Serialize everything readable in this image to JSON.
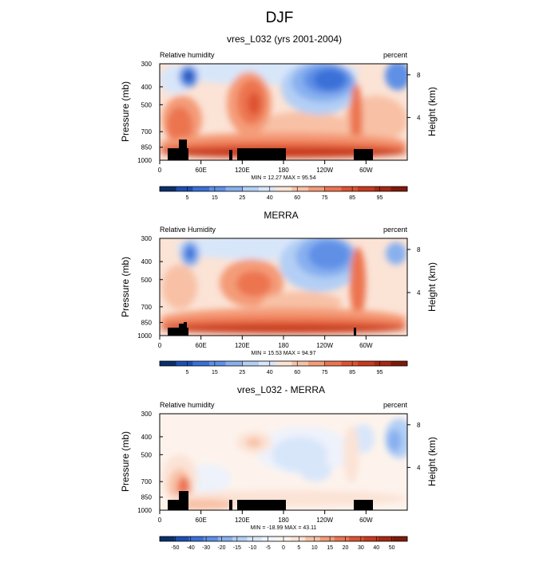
{
  "title": "DJF",
  "chart_data": [
    {
      "type": "heatmap",
      "title": "vres_L032 (yrs 2001-2004)",
      "left_label": "Relative humidity",
      "right_label": "percent",
      "ylabel": "Pressure (mb)",
      "ylabel_right": "Height (km)",
      "y_ticks": [
        "300",
        "400",
        "500",
        "700",
        "850",
        "1000"
      ],
      "y_ticks_right": [
        "8",
        "4"
      ],
      "x_ticks": [
        "0",
        "60E",
        "120E",
        "180",
        "120W",
        "60W"
      ],
      "stats": "MIN = 12.27  MAX = 95.54",
      "colorbar": {
        "colors": [
          "#08306b",
          "#1c4fb4",
          "#3a70d8",
          "#5e90e6",
          "#88b0ef",
          "#b3cff5",
          "#d8e6fa",
          "#fbe3d6",
          "#f8c1a6",
          "#f49b78",
          "#ec7450",
          "#de5331",
          "#c83a1e",
          "#a82812",
          "#80190a"
        ],
        "labels": [
          "5",
          "15",
          "25",
          "40",
          "60",
          "75",
          "85",
          "95"
        ]
      }
    },
    {
      "type": "heatmap",
      "title": "MERRA",
      "left_label": "Relative Humidity",
      "right_label": "percent",
      "ylabel": "Pressure (mb)",
      "ylabel_right": "Height (km)",
      "y_ticks": [
        "300",
        "400",
        "500",
        "700",
        "850",
        "1000"
      ],
      "y_ticks_right": [
        "8",
        "4"
      ],
      "x_ticks": [
        "0",
        "60E",
        "120E",
        "180",
        "120W",
        "60W"
      ],
      "stats": "MIN = 15.53  MAX = 94.97",
      "colorbar": {
        "colors": [
          "#08306b",
          "#1c4fb4",
          "#3a70d8",
          "#5e90e6",
          "#88b0ef",
          "#b3cff5",
          "#d8e6fa",
          "#fbe3d6",
          "#f8c1a6",
          "#f49b78",
          "#ec7450",
          "#de5331",
          "#c83a1e",
          "#a82812",
          "#80190a"
        ],
        "labels": [
          "5",
          "15",
          "25",
          "40",
          "60",
          "75",
          "85",
          "95"
        ]
      }
    },
    {
      "type": "heatmap",
      "title": "vres_L032 - MERRA",
      "left_label": "Relative humidity",
      "right_label": "percent",
      "ylabel": "Pressure (mb)",
      "ylabel_right": "Height (km)",
      "y_ticks": [
        "300",
        "400",
        "500",
        "700",
        "850",
        "1000"
      ],
      "y_ticks_right": [
        "8",
        "4"
      ],
      "x_ticks": [
        "0",
        "60E",
        "120E",
        "180",
        "120W",
        "60W"
      ],
      "stats": "MIN = -18.99  MAX = 43.11",
      "colorbar": {
        "colors": [
          "#08306b",
          "#1c4fb4",
          "#3a70d8",
          "#5e90e6",
          "#88b0ef",
          "#b3cff5",
          "#d8e6fa",
          "#eef2fb",
          "#fdf3ec",
          "#fbe3d6",
          "#f8c1a6",
          "#f49b78",
          "#ec7450",
          "#de5331",
          "#c83a1e",
          "#a82812",
          "#80190a"
        ],
        "labels": [
          "-50",
          "-40",
          "-30",
          "-20",
          "-15",
          "-10",
          "-5",
          "0",
          "5",
          "10",
          "15",
          "20",
          "30",
          "40",
          "50"
        ]
      }
    }
  ]
}
